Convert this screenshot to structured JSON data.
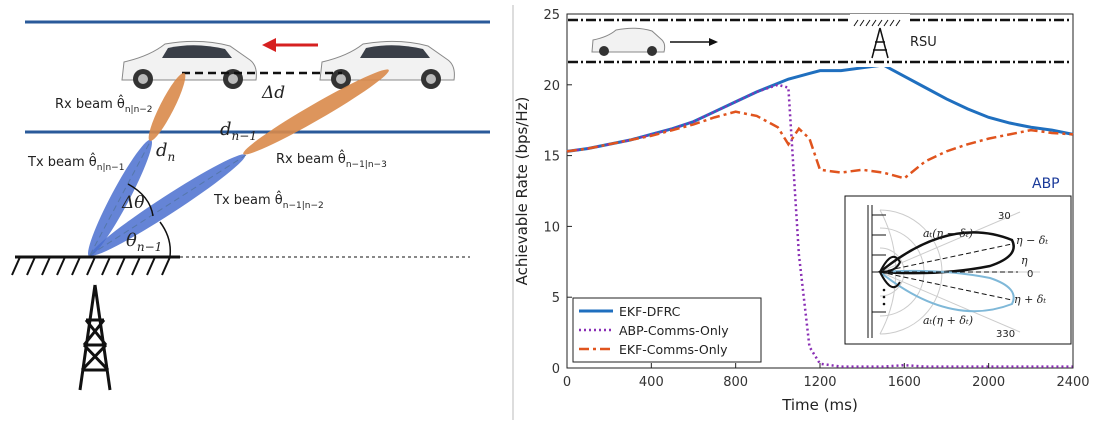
{
  "diagram": {
    "labels": [
      {
        "main": "Rx beam θ̂",
        "sub": "n|n−2"
      },
      {
        "main": "d",
        "sub": "n"
      },
      {
        "main": "d",
        "sub": "n−1"
      },
      {
        "main": "Rx beam θ̂",
        "sub": "n−1|n−3"
      },
      {
        "main": "Tx beam θ̂",
        "sub": "n|n−1"
      },
      {
        "main": "Δθ"
      },
      {
        "main": "Tx beam θ̂",
        "sub": "n−1|n−2"
      },
      {
        "main": "θ",
        "sub": "n−1"
      },
      {
        "main": "Δd"
      }
    ]
  },
  "chart_data": {
    "type": "line",
    "xlabel": "Time (ms)",
    "ylabel": "Achievable Rate (bps/Hz)",
    "x": [
      0,
      100,
      200,
      300,
      400,
      500,
      600,
      700,
      800,
      900,
      1000,
      1050,
      1100,
      1150,
      1200,
      1300,
      1400,
      1500,
      1600,
      1700,
      1800,
      1900,
      2000,
      2100,
      2200,
      2300,
      2400
    ],
    "series": [
      {
        "name": "EKF-DFRC",
        "color": "#1f6fbf",
        "dash": "solid",
        "values": [
          15.3,
          15.5,
          15.8,
          16.1,
          16.5,
          16.9,
          17.4,
          18.1,
          18.8,
          19.5,
          20.1,
          20.4,
          20.6,
          20.8,
          21.0,
          21.0,
          21.2,
          21.4,
          20.6,
          19.8,
          19.0,
          18.3,
          17.7,
          17.3,
          17.0,
          16.8,
          16.5
        ]
      },
      {
        "name": "ABP-Comms-Only",
        "color": "#8a2fb5",
        "dash": "dotted",
        "values": [
          15.3,
          15.5,
          15.8,
          16.1,
          16.5,
          16.9,
          17.4,
          18.1,
          18.8,
          19.5,
          20.0,
          19.8,
          8,
          1.5,
          0.3,
          0.1,
          0.1,
          0.1,
          0.2,
          0.1,
          0.1,
          0.1,
          0.1,
          0.1,
          0.1,
          0.1,
          0.1
        ]
      },
      {
        "name": "EKF-Comms-Only",
        "color": "#e0541e",
        "dash": "dashdot",
        "values": [
          15.3,
          15.5,
          15.8,
          16.1,
          16.4,
          16.8,
          17.2,
          17.7,
          18.1,
          17.8,
          17.0,
          15.8,
          16.9,
          16.2,
          14.0,
          13.8,
          14.0,
          13.8,
          13.4,
          14.6,
          15.3,
          15.8,
          16.2,
          16.5,
          16.8,
          16.6,
          16.5
        ]
      }
    ],
    "xlim": [
      0,
      2400
    ],
    "xticks": [
      0,
      400,
      800,
      1200,
      1600,
      2000,
      2400
    ],
    "ylim": [
      0,
      25
    ],
    "yticks": [
      0,
      5,
      10,
      15,
      20,
      25
    ],
    "legend": "lower left",
    "annotations": [
      "RSU",
      "ABP"
    ],
    "inset_labels": [
      "30",
      "330",
      "aₜ(η − δₜ)",
      "η − δₜ",
      "η",
      "0",
      "η + δₜ",
      "aₜ(η + δₜ)"
    ]
  }
}
